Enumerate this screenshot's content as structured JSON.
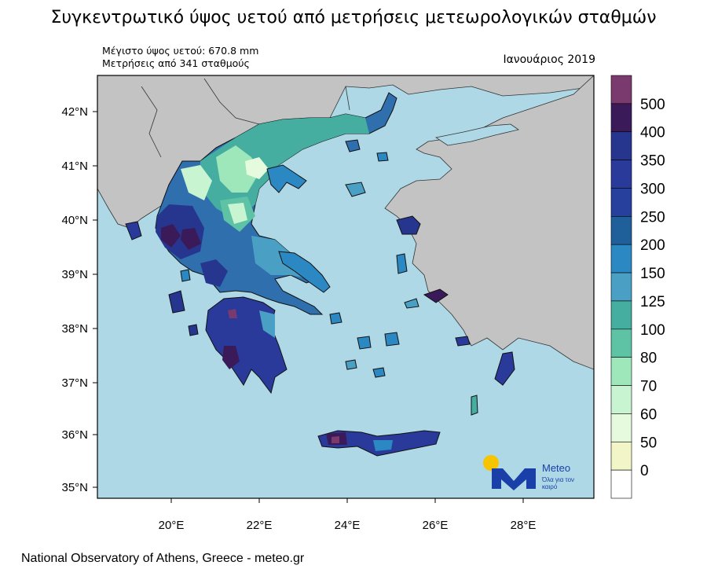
{
  "title": "Συγκεντρωτικό ύψος υετού από μετρήσεις μετεωρολογικών σταθμών",
  "subtitle_max": "Μέγιστο ύψος υετού: 670.8 mm",
  "subtitle_stations": "Μετρήσεις από 341 σταθμούς",
  "period": "Ιανουάριος 2019",
  "footer": "National Observatory of Athens, Greece - meteo.gr",
  "logo": {
    "name": "Meteo",
    "tagline": "Όλα για τον καιρό",
    "icon": "meteo-logo-icon",
    "sun_color": "#f7c400",
    "mark_color": "#1a3fa8"
  },
  "axes": {
    "lat_labels": [
      "42°N",
      "41°N",
      "40°N",
      "39°N",
      "38°N",
      "37°N",
      "36°N",
      "35°N"
    ],
    "lon_labels": [
      "20°E",
      "22°E",
      "24°E",
      "26°E",
      "28°E"
    ]
  },
  "colorbar": {
    "labels": [
      "500",
      "400",
      "350",
      "300",
      "250",
      "200",
      "150",
      "125",
      "100",
      "80",
      "70",
      "60",
      "50",
      "0"
    ],
    "colors": [
      "#7a3a6e",
      "#3b1a5a",
      "#26368f",
      "#2a3a9a",
      "#27409d",
      "#1f5f9a",
      "#2b88c2",
      "#4aa0c4",
      "#45aea0",
      "#5ec2a4",
      "#9de7ba",
      "#c8f4d2",
      "#e6fadd",
      "#f2f5c8",
      "#ffffff"
    ]
  },
  "colors": {
    "sea": "#aed8e6",
    "land": "#c3c3c3",
    "border": "#000000"
  }
}
